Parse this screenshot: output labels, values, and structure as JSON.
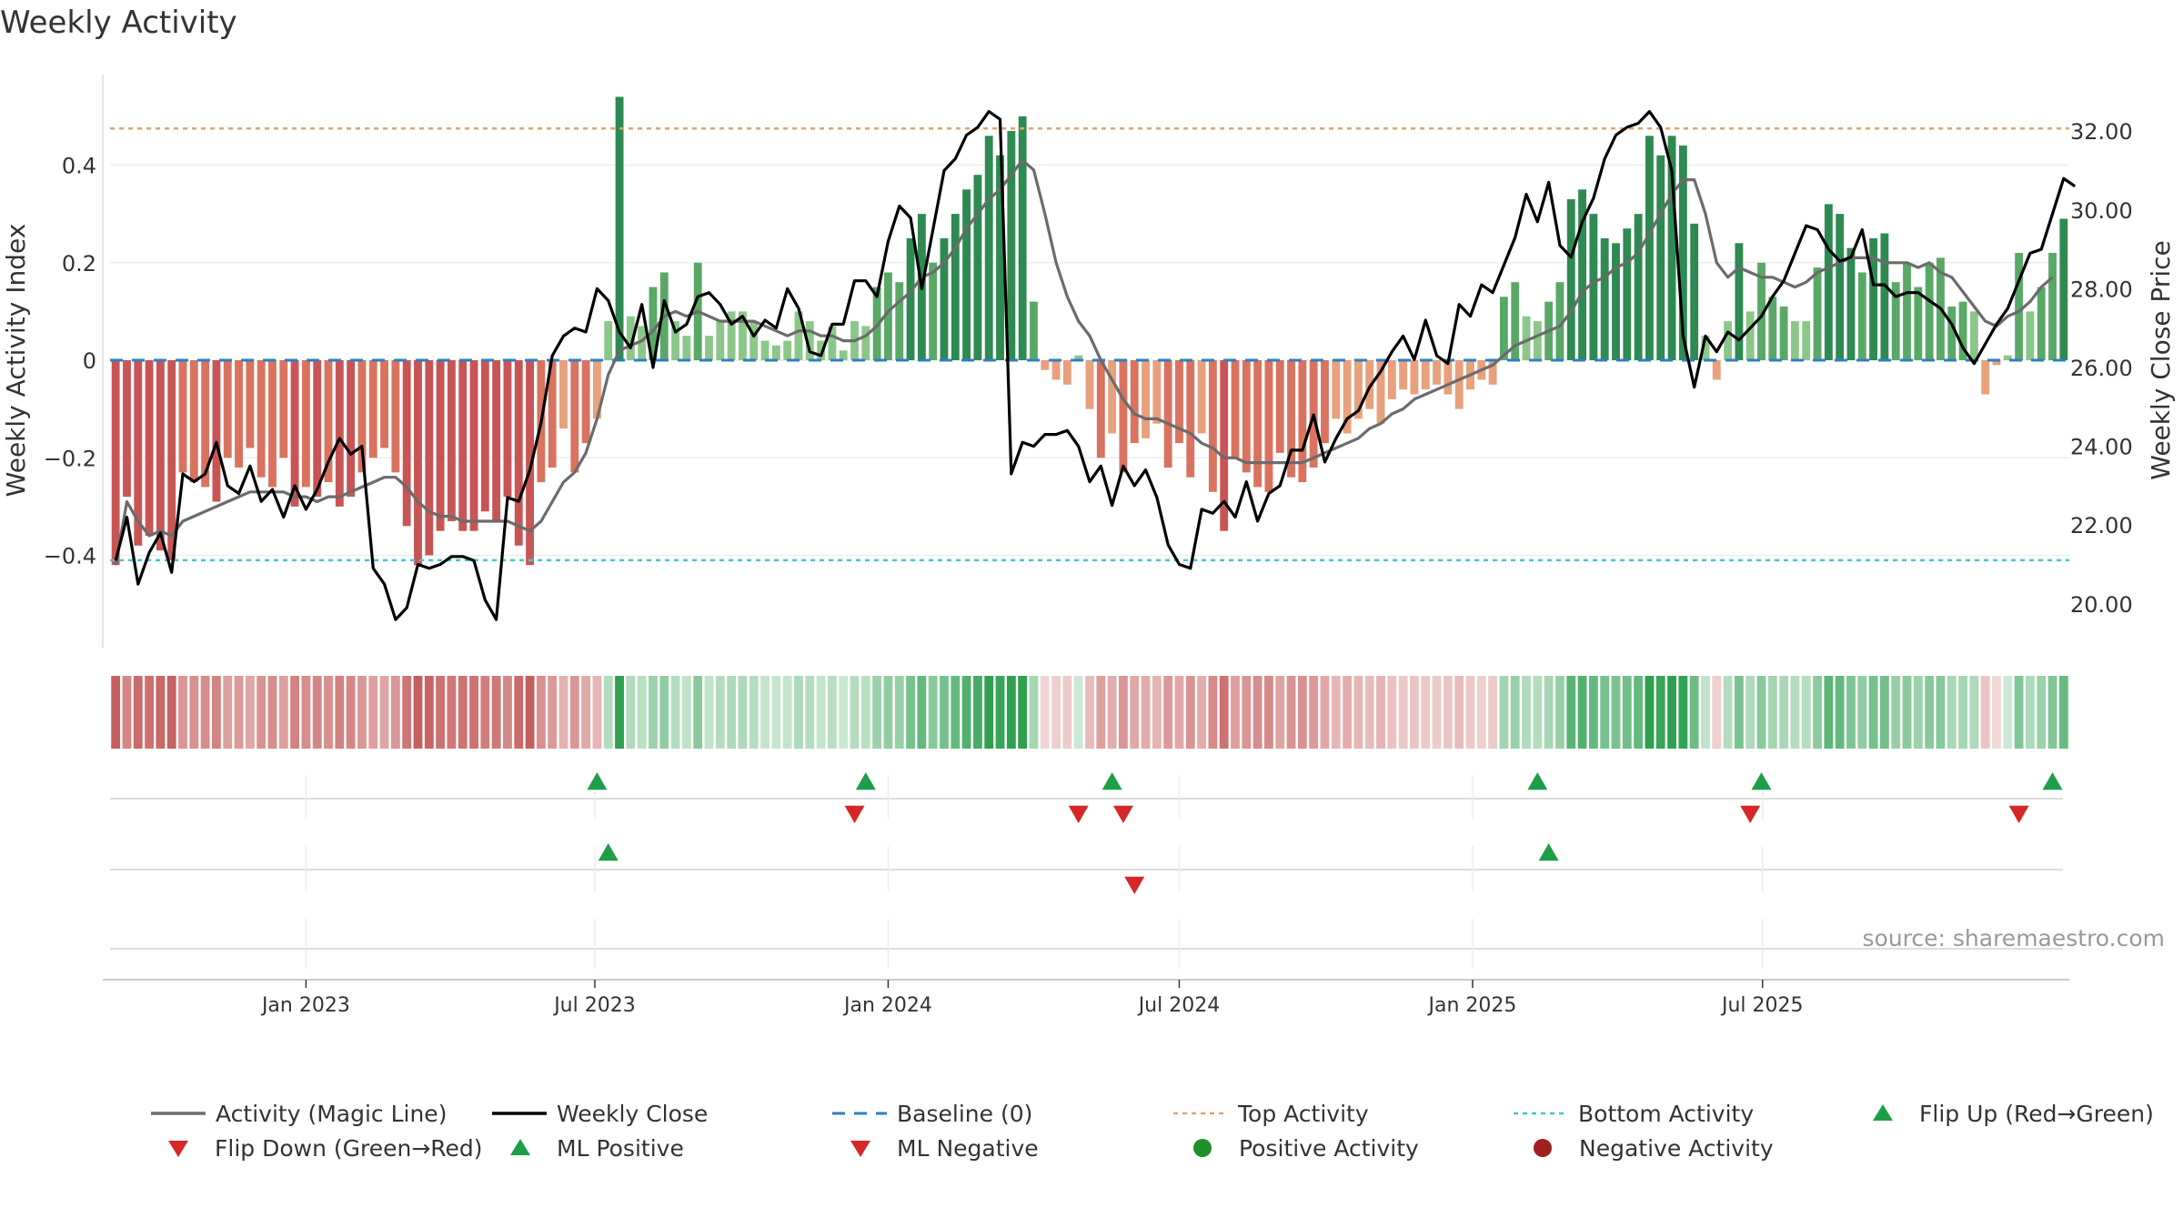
{
  "chart_data": {
    "type": "bar",
    "title": "Weekly Activity",
    "source": "source: sharemaestro.com",
    "ylabel_left": "Weekly Activity Index",
    "ylabel_right": "Weekly Close Price",
    "y_left_ticks": [
      {
        "value": -0.4,
        "label": "−0.4"
      },
      {
        "value": -0.2,
        "label": "−0.2"
      },
      {
        "value": 0,
        "label": "0"
      },
      {
        "value": 0.2,
        "label": "0.2"
      },
      {
        "value": 0.4,
        "label": "0.4"
      }
    ],
    "y_right_ticks": [
      "20.00",
      "22.00",
      "24.00",
      "26.00",
      "28.00",
      "30.00",
      "32.00"
    ],
    "ylim_left": [
      -0.59,
      0.59
    ],
    "ylim_right": [
      18.7,
      33.3
    ],
    "x_ticks": [
      {
        "label": "Jan 2023",
        "index": 17.5
      },
      {
        "label": "Jul 2023",
        "index": 43.3
      },
      {
        "label": "Jan 2024",
        "index": 69.5
      },
      {
        "label": "Jul 2024",
        "index": 95.5
      },
      {
        "label": "Jan 2025",
        "index": 121.7
      },
      {
        "label": "Jul 2025",
        "index": 147.6
      }
    ],
    "top_activity": 0.475,
    "bottom_activity": -0.41,
    "activity": [
      -0.42,
      -0.28,
      -0.38,
      -0.36,
      -0.39,
      -0.41,
      -0.23,
      -0.25,
      -0.26,
      -0.29,
      -0.2,
      -0.22,
      -0.18,
      -0.24,
      -0.26,
      -0.2,
      -0.3,
      -0.26,
      -0.28,
      -0.25,
      -0.3,
      -0.28,
      -0.23,
      -0.2,
      -0.18,
      -0.23,
      -0.34,
      -0.42,
      -0.4,
      -0.35,
      -0.33,
      -0.35,
      -0.35,
      -0.31,
      -0.33,
      -0.28,
      -0.38,
      -0.42,
      -0.25,
      -0.22,
      -0.14,
      -0.23,
      -0.17,
      -0.12,
      0.08,
      0.54,
      0.09,
      0.07,
      0.15,
      0.18,
      0.08,
      0.05,
      0.2,
      0.05,
      0.08,
      0.1,
      0.1,
      0.08,
      0.04,
      0.03,
      0.04,
      0.1,
      0.08,
      0.04,
      0.07,
      0.02,
      0.08,
      0.07,
      0.15,
      0.18,
      0.16,
      0.25,
      0.3,
      0.2,
      0.25,
      0.3,
      0.35,
      0.38,
      0.46,
      0.42,
      0.47,
      0.5,
      0.12,
      -0.02,
      -0.04,
      -0.05,
      0.01,
      -0.1,
      -0.2,
      -0.15,
      -0.23,
      -0.17,
      -0.16,
      -0.13,
      -0.22,
      -0.17,
      -0.24,
      -0.15,
      -0.27,
      -0.35,
      -0.2,
      -0.23,
      -0.26,
      -0.27,
      -0.19,
      -0.24,
      -0.25,
      -0.22,
      -0.17,
      -0.12,
      -0.15,
      -0.12,
      -0.1,
      -0.13,
      -0.08,
      -0.06,
      -0.07,
      -0.06,
      -0.05,
      -0.07,
      -0.1,
      -0.06,
      -0.04,
      -0.05,
      0.13,
      0.16,
      0.09,
      0.08,
      0.12,
      0.16,
      0.33,
      0.35,
      0.3,
      0.25,
      0.24,
      0.27,
      0.3,
      0.46,
      0.42,
      0.46,
      0.44,
      0.28,
      0.05,
      -0.04,
      0.08,
      0.24,
      0.1,
      0.2,
      0.13,
      0.11,
      0.08,
      0.08,
      0.19,
      0.32,
      0.3,
      0.23,
      0.18,
      0.25,
      0.26,
      0.16,
      0.2,
      0.15,
      0.2,
      0.21,
      0.11,
      0.12,
      0.1,
      -0.07,
      -0.01,
      0.01,
      0.22,
      0.1,
      0.15,
      0.22,
      0.29
    ],
    "magic_line": [
      -0.42,
      -0.29,
      -0.33,
      -0.36,
      -0.35,
      -0.36,
      -0.33,
      -0.32,
      -0.31,
      -0.3,
      -0.29,
      -0.28,
      -0.27,
      -0.27,
      -0.27,
      -0.27,
      -0.28,
      -0.28,
      -0.29,
      -0.28,
      -0.28,
      -0.27,
      -0.26,
      -0.25,
      -0.24,
      -0.24,
      -0.26,
      -0.29,
      -0.31,
      -0.32,
      -0.32,
      -0.33,
      -0.33,
      -0.33,
      -0.33,
      -0.33,
      -0.34,
      -0.35,
      -0.33,
      -0.29,
      -0.25,
      -0.23,
      -0.19,
      -0.12,
      -0.03,
      0.02,
      0.03,
      0.04,
      0.06,
      0.09,
      0.1,
      0.09,
      0.1,
      0.09,
      0.08,
      0.08,
      0.08,
      0.08,
      0.07,
      0.06,
      0.05,
      0.06,
      0.06,
      0.05,
      0.05,
      0.04,
      0.04,
      0.05,
      0.07,
      0.1,
      0.12,
      0.14,
      0.17,
      0.18,
      0.2,
      0.23,
      0.27,
      0.3,
      0.33,
      0.35,
      0.38,
      0.41,
      0.39,
      0.3,
      0.2,
      0.13,
      0.08,
      0.05,
      0.0,
      -0.04,
      -0.08,
      -0.11,
      -0.12,
      -0.12,
      -0.13,
      -0.14,
      -0.15,
      -0.17,
      -0.18,
      -0.2,
      -0.2,
      -0.21,
      -0.21,
      -0.21,
      -0.21,
      -0.21,
      -0.21,
      -0.2,
      -0.19,
      -0.18,
      -0.17,
      -0.16,
      -0.14,
      -0.13,
      -0.11,
      -0.1,
      -0.08,
      -0.07,
      -0.06,
      -0.05,
      -0.04,
      -0.03,
      -0.02,
      -0.01,
      0.01,
      0.03,
      0.04,
      0.05,
      0.06,
      0.07,
      0.1,
      0.14,
      0.16,
      0.17,
      0.19,
      0.2,
      0.22,
      0.26,
      0.3,
      0.34,
      0.37,
      0.37,
      0.3,
      0.2,
      0.17,
      0.19,
      0.18,
      0.17,
      0.17,
      0.16,
      0.15,
      0.16,
      0.18,
      0.19,
      0.2,
      0.21,
      0.21,
      0.21,
      0.2,
      0.2,
      0.2,
      0.19,
      0.2,
      0.18,
      0.17,
      0.14,
      0.11,
      0.08,
      0.07,
      0.09,
      0.1,
      0.12,
      0.15,
      0.17
    ],
    "weekly_close": [
      21.1,
      22.2,
      20.5,
      21.3,
      21.8,
      20.8,
      23.3,
      23.1,
      23.3,
      24.1,
      23.0,
      22.8,
      23.5,
      22.6,
      22.9,
      22.2,
      23.0,
      22.4,
      22.9,
      23.6,
      24.2,
      23.8,
      24.0,
      20.9,
      20.5,
      19.6,
      19.9,
      21.0,
      20.9,
      21.0,
      21.2,
      21.2,
      21.1,
      20.1,
      19.6,
      22.7,
      22.6,
      23.4,
      24.6,
      26.3,
      26.8,
      27.0,
      26.9,
      28.0,
      27.7,
      26.9,
      26.5,
      27.6,
      26.0,
      27.7,
      26.9,
      27.1,
      27.8,
      27.9,
      27.6,
      27.1,
      27.3,
      26.8,
      27.2,
      27.0,
      28.0,
      27.5,
      26.4,
      26.3,
      27.1,
      27.1,
      28.2,
      28.2,
      27.8,
      29.2,
      30.1,
      29.8,
      28.0,
      29.5,
      31.0,
      31.3,
      31.9,
      32.1,
      32.5,
      32.3,
      23.3,
      24.1,
      24.0,
      24.3,
      24.3,
      24.4,
      24.0,
      23.1,
      23.5,
      22.5,
      23.5,
      23.0,
      23.4,
      22.7,
      21.5,
      21.0,
      20.9,
      22.4,
      22.3,
      22.6,
      22.2,
      23.1,
      22.1,
      22.8,
      23.0,
      23.9,
      23.9,
      24.8,
      23.6,
      24.2,
      24.7,
      24.9,
      25.5,
      25.9,
      26.4,
      26.8,
      26.2,
      27.2,
      26.3,
      26.1,
      27.6,
      27.3,
      28.1,
      27.9,
      28.6,
      29.3,
      30.4,
      29.7,
      30.7,
      29.1,
      28.8,
      29.7,
      30.3,
      31.3,
      31.9,
      32.1,
      32.2,
      32.5,
      32.1,
      31.0,
      26.8,
      25.5,
      26.8,
      26.4,
      26.9,
      26.7,
      27.0,
      27.3,
      27.8,
      28.2,
      28.9,
      29.6,
      29.5,
      29.0,
      28.7,
      28.8,
      29.5,
      28.1,
      28.1,
      27.8,
      27.9,
      27.9,
      27.7,
      27.5,
      27.1,
      26.5,
      26.1,
      26.6,
      27.1,
      27.5,
      28.2,
      28.9,
      29.0,
      29.9,
      30.8,
      30.6
    ],
    "series": [
      {
        "name": "Activity (Magic Line)",
        "color": "#6b6b6b"
      },
      {
        "name": "Weekly Close",
        "color": "#000000"
      },
      {
        "name": "Baseline (0)",
        "color": "#2d7fbf"
      },
      {
        "name": "Top Activity",
        "color": "#e8a06b"
      },
      {
        "name": "Bottom Activity",
        "color": "#3ec9d6"
      },
      {
        "name": "Flip Up (Red→Green)",
        "color": "#1f9e4a"
      },
      {
        "name": "Flip Down (Green→Red)",
        "color": "#d62728"
      },
      {
        "name": "ML Positive",
        "color": "#1f9e4a"
      },
      {
        "name": "ML Negative",
        "color": "#d62728"
      },
      {
        "name": "Positive Activity",
        "color": "#1f8f2a"
      },
      {
        "name": "Negative Activity",
        "color": "#a01f1f"
      }
    ],
    "flip_up_weeks": [
      43,
      67,
      89,
      127,
      147,
      173
    ],
    "flip_down_weeks": [
      66,
      86,
      90,
      146,
      170
    ],
    "ml_positive_weeks": [
      44,
      128
    ],
    "ml_negative_weeks": [
      91
    ],
    "legend_position": "bottom"
  }
}
